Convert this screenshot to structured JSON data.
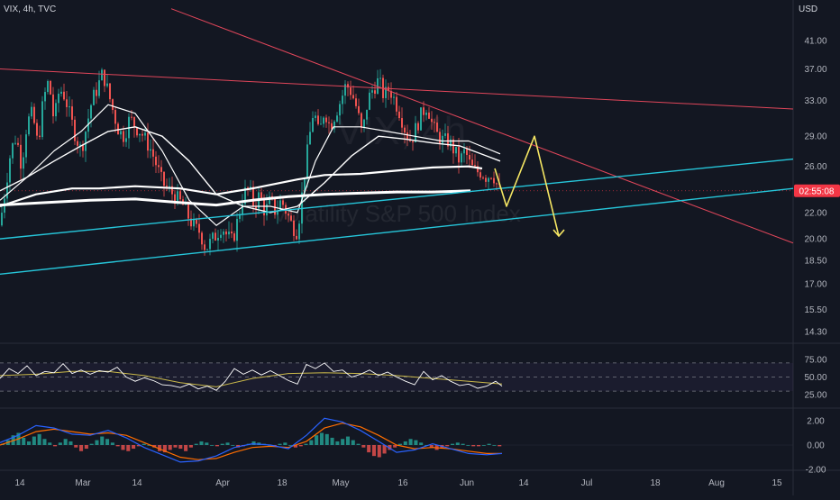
{
  "header": {
    "symbol": "VIX, 4h, TVC",
    "currency": "USD"
  },
  "watermark": {
    "ticker": "VIX, 4h",
    "name": "Volatility S&P 500 Index"
  },
  "price_axis": {
    "ticks": [
      "41.00",
      "37.00",
      "33.00",
      "29.00",
      "26.00",
      "22.00",
      "20.00",
      "18.50",
      "17.00",
      "15.50",
      "14.30"
    ],
    "current_time_badge": "02:55:08"
  },
  "rsi_axis": {
    "ticks": [
      "75.00",
      "50.00",
      "25.00"
    ]
  },
  "macd_axis": {
    "ticks": [
      "2.00",
      "0.00",
      "-2.00"
    ]
  },
  "time_axis": {
    "ticks": [
      "14",
      "Mar",
      "14",
      "Apr",
      "18",
      "May",
      "16",
      "Jun",
      "14",
      "Jul",
      "18",
      "Aug",
      "15"
    ]
  },
  "colors": {
    "background": "#131722",
    "up": "#26a69a",
    "down": "#ef5350",
    "ma": "#ffffff",
    "channel": "#26c6da",
    "resistance": "#e0465a",
    "projection": "#f5e663",
    "rsi_line": "#ffffff",
    "rsi_signal": "#c9b84a",
    "macd_line": "#2962ff",
    "macd_signal": "#ff6d00",
    "badge": "#f23645"
  },
  "chart_data": {
    "type": "candlestick",
    "title": "VIX, 4h, TVC",
    "x_ticks": [
      "14",
      "Mar",
      "14",
      "Apr",
      "18",
      "May",
      "16",
      "Jun",
      "14",
      "Jul",
      "18",
      "Aug",
      "15"
    ],
    "y_ticks": [
      41.0,
      37.0,
      33.0,
      29.0,
      26.0,
      22.0,
      20.0,
      18.5,
      17.0,
      15.5,
      14.3
    ],
    "y_scale": "log",
    "ylim": [
      13.6,
      45.0
    ],
    "close_path": [
      [
        0,
        21.0
      ],
      [
        6,
        24.0
      ],
      [
        12,
        27.5
      ],
      [
        18,
        29.0
      ],
      [
        24,
        26.0
      ],
      [
        30,
        30.5
      ],
      [
        36,
        31.5
      ],
      [
        42,
        28.0
      ],
      [
        48,
        33.0
      ],
      [
        54,
        35.5
      ],
      [
        60,
        30.5
      ],
      [
        66,
        34.5
      ],
      [
        72,
        33.5
      ],
      [
        78,
        31.0
      ],
      [
        84,
        29.0
      ],
      [
        90,
        27.5
      ],
      [
        96,
        30.0
      ],
      [
        102,
        33.0
      ],
      [
        108,
        34.5
      ],
      [
        114,
        36.5
      ],
      [
        120,
        34.0
      ],
      [
        126,
        31.5
      ],
      [
        132,
        29.5
      ],
      [
        138,
        29.0
      ],
      [
        144,
        31.0
      ],
      [
        150,
        30.0
      ],
      [
        156,
        29.5
      ],
      [
        162,
        28.5
      ],
      [
        168,
        27.5
      ],
      [
        174,
        26.0
      ],
      [
        180,
        24.5
      ],
      [
        186,
        24.0
      ],
      [
        192,
        23.5
      ],
      [
        198,
        23.0
      ],
      [
        204,
        22.5
      ],
      [
        210,
        21.5
      ],
      [
        216,
        20.8
      ],
      [
        222,
        20.5
      ],
      [
        228,
        19.3
      ],
      [
        234,
        19.8
      ],
      [
        240,
        20.3
      ],
      [
        246,
        21.0
      ],
      [
        252,
        20.2
      ],
      [
        258,
        19.8
      ],
      [
        264,
        21.5
      ],
      [
        270,
        23.5
      ],
      [
        276,
        24.0
      ],
      [
        282,
        22.5
      ],
      [
        288,
        23.5
      ],
      [
        294,
        22.0
      ],
      [
        300,
        23.0
      ],
      [
        306,
        22.0
      ],
      [
        312,
        23.0
      ],
      [
        318,
        22.0
      ],
      [
        324,
        21.0
      ],
      [
        330,
        20.5
      ],
      [
        336,
        24.0
      ],
      [
        342,
        28.0
      ],
      [
        348,
        32.0
      ],
      [
        354,
        29.0
      ],
      [
        360,
        32.0
      ],
      [
        366,
        30.0
      ],
      [
        372,
        31.5
      ],
      [
        378,
        33.0
      ],
      [
        384,
        35.0
      ],
      [
        390,
        34.0
      ],
      [
        396,
        32.0
      ],
      [
        402,
        29.0
      ],
      [
        408,
        33.0
      ],
      [
        414,
        34.5
      ],
      [
        420,
        35.5
      ],
      [
        426,
        33.5
      ],
      [
        432,
        34.5
      ],
      [
        438,
        33.0
      ],
      [
        444,
        31.5
      ],
      [
        450,
        29.5
      ],
      [
        456,
        28.5
      ],
      [
        462,
        30.0
      ],
      [
        468,
        31.5
      ],
      [
        474,
        32.5
      ],
      [
        480,
        30.0
      ],
      [
        486,
        29.0
      ],
      [
        492,
        28.5
      ],
      [
        498,
        28.5
      ],
      [
        504,
        27.5
      ],
      [
        510,
        26.5
      ],
      [
        516,
        27.5
      ],
      [
        522,
        26.0
      ],
      [
        528,
        25.5
      ],
      [
        534,
        25.5
      ],
      [
        540,
        25.0
      ],
      [
        546,
        25.5
      ],
      [
        552,
        24.2
      ],
      [
        557,
        23.5
      ]
    ],
    "moving_averages": [
      {
        "name": "",
        "points": [
          [
            0,
            23.0
          ],
          [
            30,
            25.0
          ],
          [
            60,
            27.5
          ],
          [
            90,
            29.5
          ],
          [
            120,
            32.5
          ],
          [
            150,
            31.5
          ],
          [
            180,
            27.5
          ],
          [
            210,
            23.0
          ],
          [
            240,
            21.0
          ],
          [
            270,
            22.5
          ],
          [
            300,
            22.5
          ],
          [
            330,
            22.0
          ],
          [
            350,
            26.5
          ],
          [
            370,
            30.0
          ],
          [
            400,
            30.0
          ],
          [
            430,
            29.5
          ],
          [
            460,
            29.0
          ],
          [
            490,
            28.5
          ],
          [
            520,
            28.5
          ],
          [
            555,
            27.2
          ]
        ]
      },
      {
        "name": "",
        "points": [
          [
            0,
            23.8
          ],
          [
            30,
            25.0
          ],
          [
            60,
            26.5
          ],
          [
            90,
            28.0
          ],
          [
            120,
            29.5
          ],
          [
            150,
            30.0
          ],
          [
            180,
            29.0
          ],
          [
            210,
            26.5
          ],
          [
            240,
            23.5
          ],
          [
            270,
            22.5
          ],
          [
            300,
            22.0
          ],
          [
            330,
            22.5
          ],
          [
            360,
            24.5
          ],
          [
            390,
            27.0
          ],
          [
            420,
            29.0
          ],
          [
            450,
            28.7
          ],
          [
            480,
            28.3
          ],
          [
            510,
            28.0
          ],
          [
            540,
            27.0
          ],
          [
            555,
            26.5
          ]
        ]
      },
      {
        "name": "",
        "points": [
          [
            0,
            22.5
          ],
          [
            40,
            23.5
          ],
          [
            80,
            24.0
          ],
          [
            110,
            24.0
          ],
          [
            150,
            24.2
          ],
          [
            200,
            24.0
          ],
          [
            240,
            23.5
          ],
          [
            280,
            24.0
          ],
          [
            330,
            24.8
          ],
          [
            360,
            25.2
          ],
          [
            400,
            25.3
          ],
          [
            440,
            25.6
          ],
          [
            480,
            25.9
          ],
          [
            520,
            26.0
          ],
          [
            535,
            25.8
          ]
        ]
      },
      {
        "name": "",
        "points": [
          [
            0,
            22.6
          ],
          [
            50,
            22.8
          ],
          [
            100,
            23.0
          ],
          [
            150,
            23.1
          ],
          [
            200,
            22.8
          ],
          [
            240,
            22.6
          ],
          [
            280,
            23.0
          ],
          [
            320,
            23.3
          ],
          [
            360,
            23.5
          ],
          [
            400,
            23.6
          ],
          [
            440,
            23.7
          ],
          [
            480,
            23.7
          ],
          [
            522,
            23.8
          ]
        ]
      }
    ],
    "trendlines": [
      {
        "kind": "resistance",
        "from": [
          0,
          37.0
        ],
        "to": [
          880,
          32.0
        ]
      },
      {
        "kind": "resistance",
        "from": [
          190,
          46.0
        ],
        "to": [
          880,
          19.7
        ]
      },
      {
        "kind": "channel",
        "from": [
          0,
          20.0
        ],
        "to": [
          880,
          26.7
        ]
      },
      {
        "kind": "channel",
        "from": [
          0,
          17.6
        ],
        "to": [
          880,
          24.0
        ]
      }
    ],
    "projection": [
      [
        549,
        25.8
      ],
      [
        562,
        22.5
      ],
      [
        593,
        29.0
      ],
      [
        620,
        20.2
      ]
    ],
    "rsi": {
      "ticks": [
        75.0,
        50.0,
        25.0
      ],
      "band": [
        30,
        70
      ],
      "points": [
        [
          0,
          48
        ],
        [
          10,
          62
        ],
        [
          20,
          55
        ],
        [
          30,
          66
        ],
        [
          40,
          52
        ],
        [
          50,
          58
        ],
        [
          60,
          56
        ],
        [
          70,
          69
        ],
        [
          80,
          55
        ],
        [
          90,
          60
        ],
        [
          100,
          54
        ],
        [
          110,
          59
        ],
        [
          120,
          57
        ],
        [
          130,
          64
        ],
        [
          140,
          50
        ],
        [
          150,
          44
        ],
        [
          160,
          49
        ],
        [
          170,
          45
        ],
        [
          180,
          39
        ],
        [
          190,
          38
        ],
        [
          200,
          35
        ],
        [
          210,
          40
        ],
        [
          220,
          33
        ],
        [
          230,
          37
        ],
        [
          240,
          31
        ],
        [
          250,
          44
        ],
        [
          260,
          62
        ],
        [
          270,
          54
        ],
        [
          280,
          60
        ],
        [
          290,
          53
        ],
        [
          300,
          59
        ],
        [
          310,
          52
        ],
        [
          320,
          45
        ],
        [
          330,
          40
        ],
        [
          340,
          68
        ],
        [
          350,
          62
        ],
        [
          360,
          70
        ],
        [
          370,
          58
        ],
        [
          380,
          60
        ],
        [
          390,
          50
        ],
        [
          400,
          54
        ],
        [
          410,
          60
        ],
        [
          420,
          52
        ],
        [
          430,
          57
        ],
        [
          440,
          50
        ],
        [
          450,
          44
        ],
        [
          460,
          39
        ],
        [
          470,
          58
        ],
        [
          480,
          46
        ],
        [
          490,
          52
        ],
        [
          500,
          44
        ],
        [
          510,
          38
        ],
        [
          520,
          40
        ],
        [
          530,
          34
        ],
        [
          540,
          37
        ],
        [
          550,
          44
        ],
        [
          557,
          37
        ]
      ],
      "signal": [
        [
          0,
          52
        ],
        [
          40,
          54
        ],
        [
          80,
          58
        ],
        [
          120,
          58
        ],
        [
          160,
          52
        ],
        [
          200,
          42
        ],
        [
          240,
          36
        ],
        [
          280,
          48
        ],
        [
          320,
          55
        ],
        [
          360,
          56
        ],
        [
          400,
          55
        ],
        [
          440,
          52
        ],
        [
          480,
          48
        ],
        [
          520,
          44
        ],
        [
          557,
          40
        ]
      ]
    },
    "macd": {
      "ticks": [
        2.0,
        0.0,
        -2.0
      ],
      "histogram": [
        0.1,
        0.4,
        0.8,
        1.0,
        0.6,
        0.3,
        0.7,
        0.9,
        0.5,
        0.2,
        -0.1,
        0.2,
        0.5,
        0.3,
        -0.2,
        -0.5,
        -0.3,
        0.1,
        0.4,
        0.7,
        0.5,
        0.2,
        -0.1,
        -0.4,
        -0.5,
        -0.3,
        -0.1,
        0.1,
        0.0,
        -0.2,
        -0.5,
        -0.6,
        -0.4,
        -0.2,
        -0.3,
        -0.5,
        -0.2,
        0.1,
        0.3,
        0.2,
        0.0,
        -0.1,
        0.1,
        0.2,
        0.0,
        -0.2,
        -0.1,
        0.1,
        0.3,
        0.2,
        0.1,
        0.0,
        -0.1,
        0.1,
        0.2,
        0.0,
        -0.2,
        -0.1,
        0.1,
        0.4,
        0.8,
        1.0,
        0.9,
        0.6,
        0.3,
        0.5,
        0.7,
        0.4,
        0.1,
        -0.2,
        -0.6,
        -0.9,
        -1.0,
        -0.7,
        -0.4,
        -0.2,
        0.1,
        0.3,
        0.5,
        0.4,
        0.2,
        0.0,
        -0.2,
        -0.4,
        -0.3,
        -0.1,
        0.1,
        0.2,
        0.1,
        0.0,
        -0.1,
        -0.1,
        0.0,
        0.1,
        0.0,
        -0.1
      ],
      "macd_line": [
        [
          0,
          0.2
        ],
        [
          20,
          0.8
        ],
        [
          40,
          1.6
        ],
        [
          60,
          1.4
        ],
        [
          80,
          0.9
        ],
        [
          100,
          0.8
        ],
        [
          120,
          1.2
        ],
        [
          140,
          0.6
        ],
        [
          160,
          -0.2
        ],
        [
          180,
          -0.8
        ],
        [
          200,
          -1.4
        ],
        [
          220,
          -1.3
        ],
        [
          240,
          -0.9
        ],
        [
          260,
          -0.2
        ],
        [
          280,
          0.1
        ],
        [
          300,
          0.0
        ],
        [
          320,
          -0.3
        ],
        [
          340,
          0.8
        ],
        [
          360,
          2.2
        ],
        [
          380,
          1.9
        ],
        [
          400,
          1.2
        ],
        [
          420,
          0.3
        ],
        [
          440,
          -0.6
        ],
        [
          460,
          -0.4
        ],
        [
          480,
          0.1
        ],
        [
          500,
          -0.3
        ],
        [
          520,
          -0.7
        ],
        [
          540,
          -0.8
        ],
        [
          557,
          -0.7
        ]
      ],
      "signal_line": [
        [
          0,
          0.0
        ],
        [
          20,
          0.5
        ],
        [
          40,
          1.1
        ],
        [
          60,
          1.3
        ],
        [
          80,
          1.1
        ],
        [
          100,
          0.9
        ],
        [
          120,
          1.0
        ],
        [
          140,
          0.8
        ],
        [
          160,
          0.2
        ],
        [
          180,
          -0.4
        ],
        [
          200,
          -1.0
        ],
        [
          220,
          -1.2
        ],
        [
          240,
          -1.1
        ],
        [
          260,
          -0.6
        ],
        [
          280,
          -0.2
        ],
        [
          300,
          -0.1
        ],
        [
          320,
          -0.2
        ],
        [
          340,
          0.3
        ],
        [
          360,
          1.4
        ],
        [
          380,
          1.8
        ],
        [
          400,
          1.5
        ],
        [
          420,
          0.8
        ],
        [
          440,
          0.0
        ],
        [
          460,
          -0.3
        ],
        [
          480,
          -0.2
        ],
        [
          500,
          -0.3
        ],
        [
          520,
          -0.5
        ],
        [
          540,
          -0.7
        ],
        [
          557,
          -0.7
        ]
      ]
    }
  }
}
